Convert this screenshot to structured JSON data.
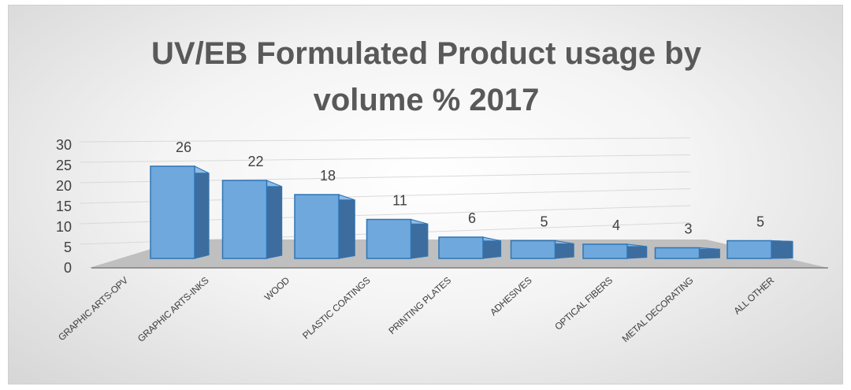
{
  "chart_data": {
    "type": "bar",
    "title_lines": [
      "UV/EB Formulated Product usage by",
      "volume % 2017"
    ],
    "categories": [
      "GRAPHIC ARTS-OPV",
      "GRAPHIC ARTS-INKS",
      "WOOD",
      "PLASTIC COATINGS",
      "PRINTING PLATES",
      "ADHESIVES",
      "OPTICAL FIBERS",
      "METAL DECORATING",
      "ALL OTHER"
    ],
    "values": [
      26,
      22,
      18,
      11,
      6,
      5,
      4,
      3,
      5
    ],
    "data_labels": [
      "26",
      "22",
      "18",
      "11",
      "6",
      "5",
      "4",
      "3",
      "5"
    ],
    "ylim": [
      0,
      30
    ],
    "yticks": [
      "0",
      "5",
      "10",
      "15",
      "20",
      "25",
      "30"
    ],
    "xlabel": "",
    "ylabel": "",
    "grid": true,
    "legend": "none",
    "style": "3d-bar",
    "colors": {
      "bar_front": "#6fa8dc",
      "bar_side": "#3d6d9e",
      "bar_top": "#8ebde8",
      "bar_edge": "#2e75b6",
      "floor": "#bfbfbf",
      "gridline": "#d9d9d9",
      "text": "#404040",
      "title": "#595959"
    }
  }
}
